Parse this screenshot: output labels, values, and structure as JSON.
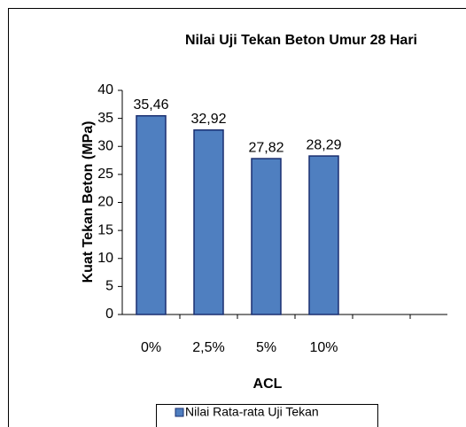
{
  "chart_data": {
    "type": "bar",
    "title": "Nilai Uji Tekan Beton Umur 28 Hari",
    "categories": [
      "0%",
      "2,5%",
      "5%",
      "10%",
      null
    ],
    "series": [
      {
        "name": "Nilai Rata-rata Uji Tekan",
        "color": "#4f7fc0",
        "values": [
          35.46,
          32.92,
          27.82,
          28.29,
          null
        ],
        "value_labels": [
          "35,46",
          "32,92",
          "27,82",
          "28,29",
          null
        ]
      }
    ],
    "ylim": [
      0,
      40
    ],
    "yticks": [
      0,
      5,
      10,
      15,
      20,
      25,
      30,
      35,
      40
    ],
    "xlabel": "ACL",
    "ylabel": "Kuat Tekan Beton (MPa)",
    "grid": false,
    "legend": "bottom"
  }
}
